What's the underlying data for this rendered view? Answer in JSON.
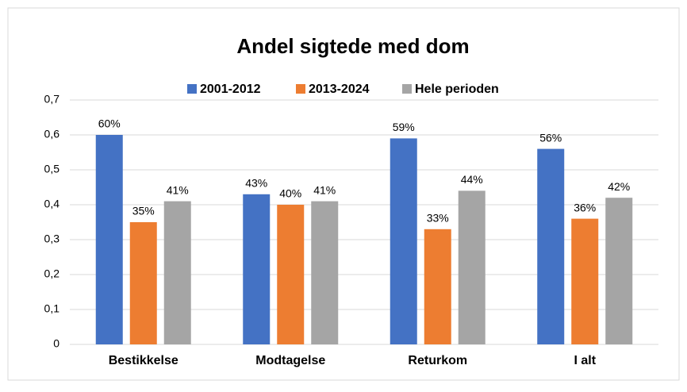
{
  "chart_data": {
    "type": "bar",
    "title": "Andel sigtede med dom",
    "categories": [
      "Bestikkelse",
      "Modtagelse",
      "Returkom",
      "I alt"
    ],
    "series": [
      {
        "name": "2001-2012",
        "color": "#4472c4",
        "values": [
          0.6,
          0.43,
          0.59,
          0.56
        ],
        "value_labels": [
          "60%",
          "43%",
          "59%",
          "56%"
        ]
      },
      {
        "name": "2013-2024",
        "color": "#ed7d31",
        "values": [
          0.35,
          0.4,
          0.33,
          0.36
        ],
        "value_labels": [
          "35%",
          "40%",
          "33%",
          "36%"
        ]
      },
      {
        "name": "Hele perioden",
        "color": "#a5a5a5",
        "values": [
          0.41,
          0.41,
          0.44,
          0.42
        ],
        "value_labels": [
          "41%",
          "41%",
          "44%",
          "42%"
        ]
      }
    ],
    "ylim": [
      0,
      0.7
    ],
    "yticks": [
      0,
      {
        "value": 0.1,
        "label": "0,1"
      },
      {
        "value": 0.2,
        "label": "0,2"
      },
      {
        "value": 0.3,
        "label": "0,3"
      },
      {
        "value": 0.4,
        "label": "0,4"
      },
      {
        "value": 0.5,
        "label": "0,5"
      },
      {
        "value": 0.6,
        "label": "0,6"
      },
      {
        "value": 0.7,
        "label": "0,7"
      }
    ],
    "legend": "top"
  }
}
